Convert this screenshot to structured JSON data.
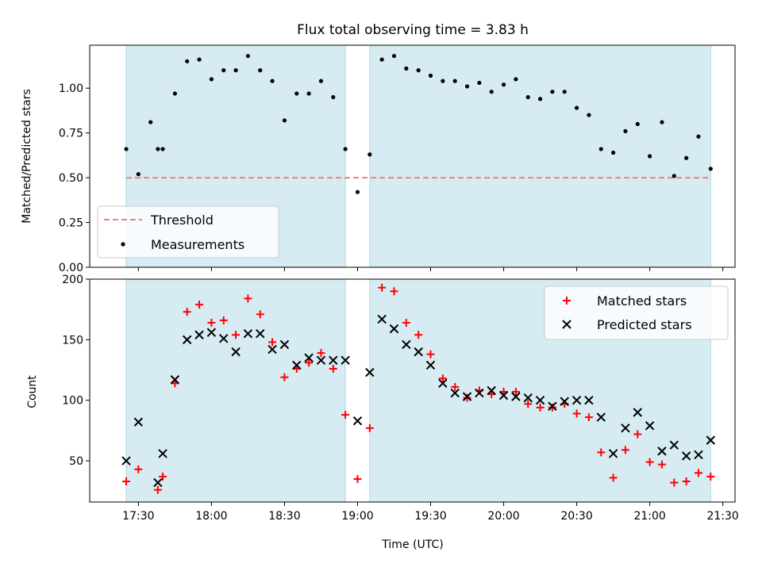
{
  "figure": {
    "title": "Flux total observing time = 3.83 h",
    "xlabel": "Time (UTC)"
  },
  "colors": {
    "shade": "#add8e6",
    "threshold": "#f08080",
    "matched": "#ff0000",
    "predicted": "#000000",
    "measurements": "#000000"
  },
  "chart_data": [
    {
      "type": "scatter",
      "ylabel": "Matched/Predicted stars",
      "ylim": [
        0.0,
        1.24
      ],
      "y_ticks": [
        0.0,
        0.25,
        0.5,
        0.75,
        1.0
      ],
      "y_tick_labels": [
        "0.00",
        "0.25",
        "0.50",
        "0.75",
        "1.00"
      ],
      "grid": false,
      "legend_position": "lower-left",
      "shaded_intervals": [
        [
          "17:25",
          "18:55"
        ],
        [
          "19:05",
          "21:25"
        ]
      ],
      "threshold": {
        "name": "Threshold",
        "value": 0.5,
        "x_range": [
          "17:25",
          "21:25"
        ]
      },
      "series": [
        {
          "name": "Measurements",
          "x": [
            "17:25",
            "17:30",
            "17:35",
            "17:38",
            "17:40",
            "17:45",
            "17:50",
            "17:55",
            "18:00",
            "18:05",
            "18:10",
            "18:15",
            "18:20",
            "18:25",
            "18:30",
            "18:35",
            "18:40",
            "18:45",
            "18:50",
            "18:55",
            "19:00",
            "19:05",
            "19:10",
            "19:15",
            "19:20",
            "19:25",
            "19:30",
            "19:35",
            "19:40",
            "19:45",
            "19:50",
            "19:55",
            "20:00",
            "20:05",
            "20:10",
            "20:15",
            "20:20",
            "20:25",
            "20:30",
            "20:35",
            "20:40",
            "20:45",
            "20:50",
            "20:55",
            "21:00",
            "21:05",
            "21:10",
            "21:15",
            "21:20",
            "21:25"
          ],
          "y": [
            0.66,
            0.52,
            0.81,
            0.66,
            0.66,
            0.97,
            1.15,
            1.16,
            1.05,
            1.1,
            1.1,
            1.18,
            1.1,
            1.04,
            0.82,
            0.97,
            0.97,
            1.04,
            0.95,
            0.66,
            0.42,
            0.63,
            1.16,
            1.18,
            1.11,
            1.1,
            1.07,
            1.04,
            1.04,
            1.01,
            1.03,
            0.98,
            1.02,
            1.05,
            0.95,
            0.94,
            0.98,
            0.98,
            0.89,
            0.85,
            0.66,
            0.64,
            0.76,
            0.8,
            0.62,
            0.81,
            0.51,
            0.61,
            0.73,
            0.55
          ]
        }
      ]
    },
    {
      "type": "scatter",
      "ylabel": "Count",
      "ylim": [
        16,
        200
      ],
      "y_ticks": [
        50,
        100,
        150,
        200
      ],
      "y_tick_labels": [
        "50",
        "100",
        "150",
        "200"
      ],
      "x_ticks": [
        "17:30",
        "18:00",
        "18:30",
        "19:00",
        "19:30",
        "20:00",
        "20:30",
        "21:00",
        "21:30"
      ],
      "x_range": [
        "17:10",
        "21:35"
      ],
      "grid": false,
      "legend_position": "top-right",
      "shaded_intervals": [
        [
          "17:25",
          "18:55"
        ],
        [
          "19:05",
          "21:25"
        ]
      ],
      "series": [
        {
          "name": "Matched stars",
          "marker": "plus",
          "x": [
            "17:25",
            "17:30",
            "17:38",
            "17:40",
            "17:45",
            "17:50",
            "17:55",
            "18:00",
            "18:05",
            "18:10",
            "18:15",
            "18:20",
            "18:25",
            "18:30",
            "18:35",
            "18:40",
            "18:45",
            "18:50",
            "18:55",
            "19:00",
            "19:05",
            "19:10",
            "19:15",
            "19:20",
            "19:25",
            "19:30",
            "19:35",
            "19:40",
            "19:45",
            "19:50",
            "19:55",
            "20:00",
            "20:05",
            "20:10",
            "20:15",
            "20:20",
            "20:25",
            "20:30",
            "20:35",
            "20:40",
            "20:45",
            "20:50",
            "20:55",
            "21:00",
            "21:05",
            "21:10",
            "21:15",
            "21:20",
            "21:25"
          ],
          "y": [
            33,
            43,
            26,
            37,
            114,
            173,
            179,
            164,
            166,
            154,
            184,
            171,
            148,
            119,
            126,
            131,
            139,
            126,
            88,
            35,
            77,
            193,
            190,
            164,
            154,
            138,
            118,
            111,
            102,
            108,
            105,
            107,
            107,
            97,
            94,
            94,
            97,
            89,
            86,
            57,
            36,
            59,
            72,
            49,
            47,
            32,
            33,
            40,
            37
          ]
        },
        {
          "name": "Predicted stars",
          "marker": "x",
          "x": [
            "17:25",
            "17:30",
            "17:38",
            "17:40",
            "17:45",
            "17:50",
            "17:55",
            "18:00",
            "18:05",
            "18:10",
            "18:15",
            "18:20",
            "18:25",
            "18:30",
            "18:35",
            "18:40",
            "18:45",
            "18:50",
            "18:55",
            "19:00",
            "19:05",
            "19:10",
            "19:15",
            "19:20",
            "19:25",
            "19:30",
            "19:35",
            "19:40",
            "19:45",
            "19:50",
            "19:55",
            "20:00",
            "20:05",
            "20:10",
            "20:15",
            "20:20",
            "20:25",
            "20:30",
            "20:35",
            "20:40",
            "20:45",
            "20:50",
            "20:55",
            "21:00",
            "21:05",
            "21:10",
            "21:15",
            "21:20",
            "21:25"
          ],
          "y": [
            50,
            82,
            32,
            56,
            117,
            150,
            154,
            156,
            151,
            140,
            155,
            155,
            142,
            146,
            129,
            135,
            133,
            133,
            133,
            83,
            123,
            167,
            159,
            146,
            140,
            129,
            114,
            106,
            103,
            106,
            108,
            104,
            103,
            102,
            100,
            95,
            99,
            100,
            100,
            86,
            56,
            77,
            90,
            79,
            58,
            63,
            54,
            55,
            67
          ]
        }
      ]
    }
  ]
}
